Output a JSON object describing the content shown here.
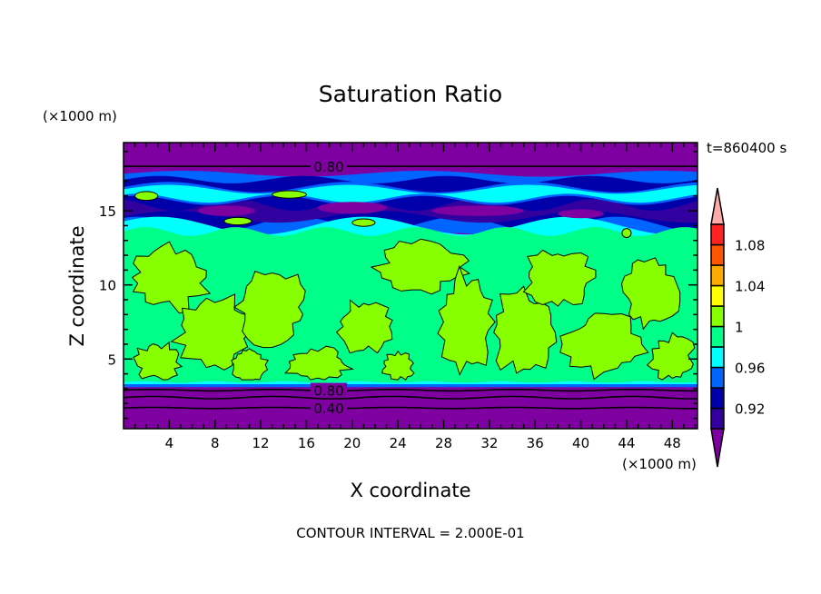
{
  "chart_data": {
    "type": "heatmap",
    "subtype": "filled-contour",
    "title": "Saturation Ratio",
    "xlabel": "X coordinate",
    "ylabel": "Z coordinate",
    "x_units": "(×1000 m)",
    "y_units": "(×1000 m)",
    "time_label": "t=860400 s",
    "footer": "CONTOUR INTERVAL = 2.000E-01",
    "xlim": [
      0,
      50.2
    ],
    "ylim": [
      0.3,
      19.6
    ],
    "xticks": [
      4,
      8,
      12,
      16,
      20,
      24,
      28,
      32,
      36,
      40,
      44,
      48
    ],
    "xtick_labels": [
      "4",
      "8",
      "12",
      "16",
      "20",
      "24",
      "28",
      "32",
      "36",
      "40",
      "44",
      "48"
    ],
    "yticks": [
      5,
      10,
      15
    ],
    "ytick_labels": [
      "5",
      "10",
      "15"
    ],
    "contour_labels": [
      {
        "text": "0.80",
        "x": 17,
        "y": 18.0
      },
      {
        "text": "0.80",
        "x": 17,
        "y": 2.9
      },
      {
        "text": "0.40",
        "x": 17,
        "y": 1.7
      }
    ],
    "colorbar": {
      "levels": [
        0.9,
        0.92,
        0.94,
        0.96,
        0.98,
        1.0,
        1.02,
        1.04,
        1.06,
        1.08,
        1.1
      ],
      "labels": [
        {
          "text": "1.08",
          "value": 1.08
        },
        {
          "text": "1.04",
          "value": 1.04
        },
        {
          "text": "1",
          "value": 1.0
        },
        {
          "text": "0.96",
          "value": 0.96
        },
        {
          "text": "0.92",
          "value": 0.92
        }
      ],
      "colors": [
        "#3300a0",
        "#0000aa",
        "#0064ff",
        "#00ffff",
        "#00ff88",
        "#88ff00",
        "#ffff00",
        "#ffaa00",
        "#ff5500",
        "#ff2222"
      ],
      "under_color": "#7f00a0",
      "over_color": "#ffaaaa"
    }
  }
}
